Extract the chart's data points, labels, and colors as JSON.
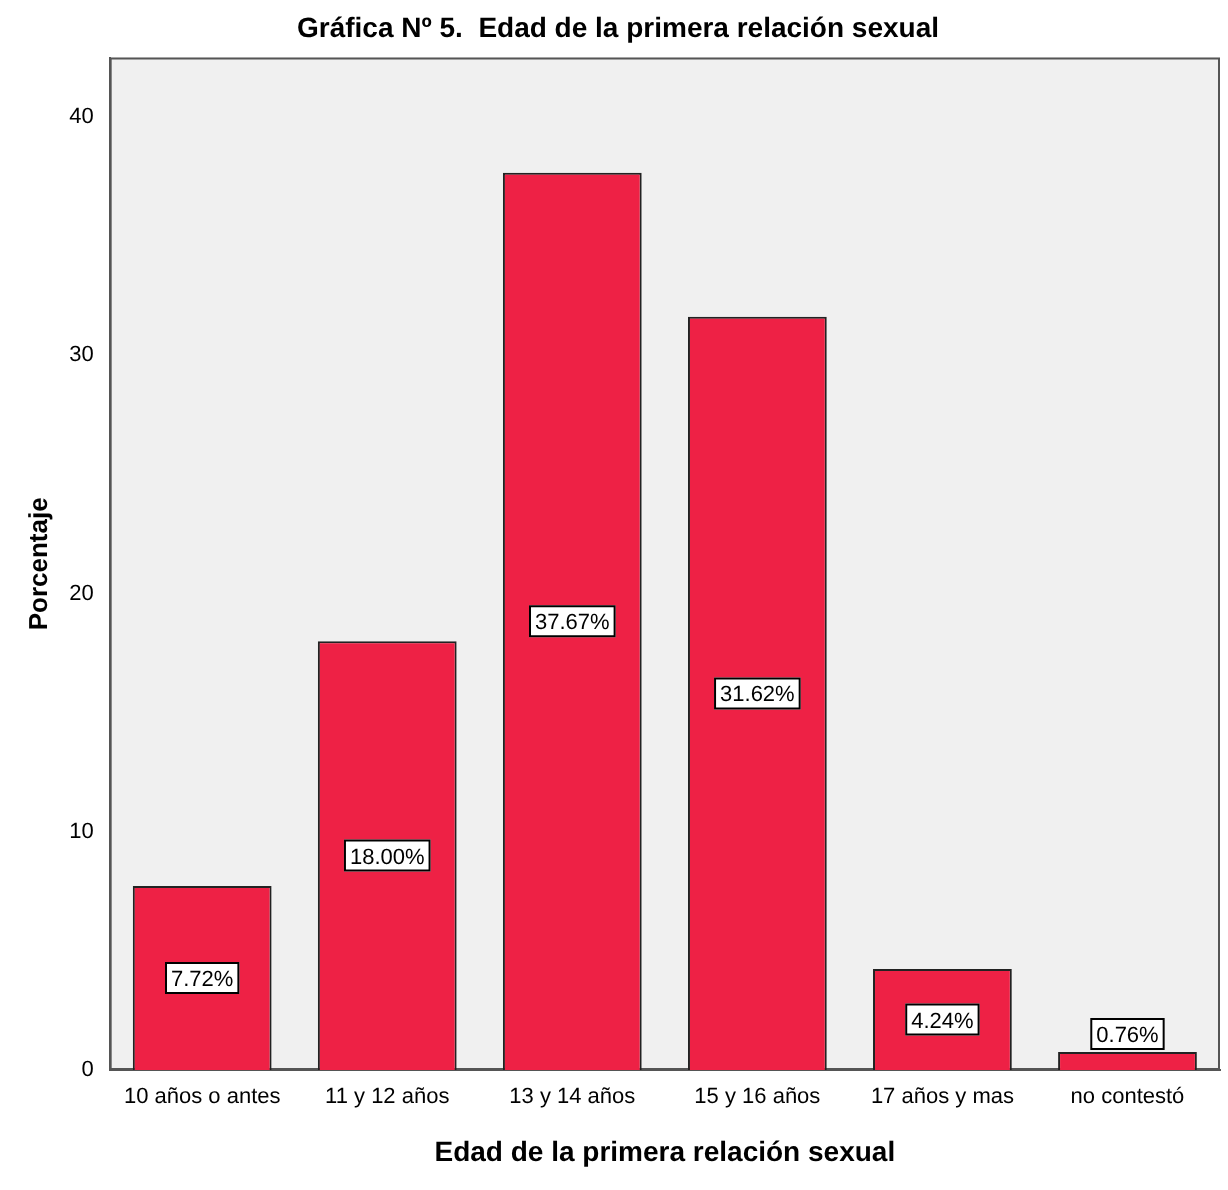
{
  "chart_data": {
    "type": "bar",
    "title": "Gráfica Nº 5.  Edad de la primera relación sexual",
    "xlabel": "Edad de la primera relación sexual",
    "ylabel": "Porcentaje",
    "categories": [
      "10 años o antes",
      "11 y 12 años",
      "13 y 14 años",
      "15 y 16 años",
      "17 años y mas",
      "no contestó"
    ],
    "values": [
      7.72,
      18.0,
      37.67,
      31.62,
      4.24,
      0.76
    ],
    "value_labels": [
      "7.72%",
      "18.00%",
      "37.67%",
      "31.62%",
      "4.24%",
      "0.76%"
    ],
    "color": "#ee2145",
    "ylim": [
      0,
      42.5
    ],
    "yticks": [
      0,
      10,
      20,
      30,
      40
    ],
    "grid": false,
    "legend": false
  }
}
